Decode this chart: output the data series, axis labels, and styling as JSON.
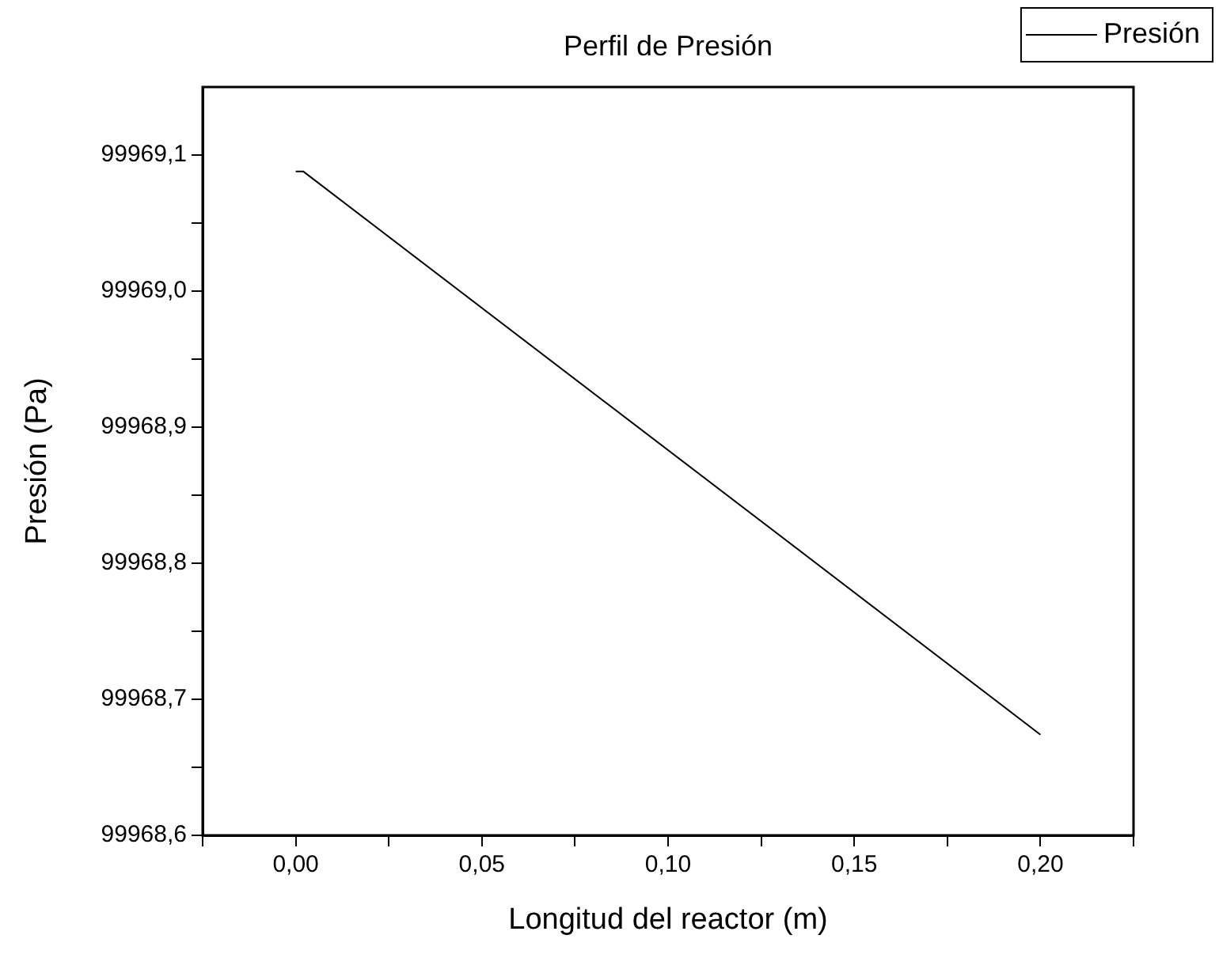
{
  "chart_data": {
    "type": "line",
    "title": "Perfil de Presión",
    "xlabel": "Longitud del reactor (m)",
    "ylabel": "Presión (Pa)",
    "x": [
      0,
      0.002,
      0.2
    ],
    "series": [
      {
        "name": "Presión",
        "color": "#000000",
        "values": [
          99969.088,
          99969.088,
          99968.674
        ]
      }
    ],
    "xlim": [
      -0.025,
      0.225
    ],
    "xticks": [
      {
        "value": -0.025,
        "label": null
      },
      {
        "value": 0,
        "label": "0,00"
      },
      {
        "value": 0.025,
        "label": null
      },
      {
        "value": 0.05,
        "label": "0,05"
      },
      {
        "value": 0.075,
        "label": null
      },
      {
        "value": 0.1,
        "label": "0,10"
      },
      {
        "value": 0.125,
        "label": null
      },
      {
        "value": 0.15,
        "label": "0,15"
      },
      {
        "value": 0.175,
        "label": null
      },
      {
        "value": 0.2,
        "label": "0,20"
      },
      {
        "value": 0.225,
        "label": null
      }
    ],
    "ylim": [
      99968.6,
      99969.15
    ],
    "yticks": [
      {
        "value": 99968.6,
        "label": "99968,6"
      },
      {
        "value": 99968.65,
        "label": null
      },
      {
        "value": 99968.7,
        "label": "99968,7"
      },
      {
        "value": 99968.75,
        "label": null
      },
      {
        "value": 99968.8,
        "label": "99968,8"
      },
      {
        "value": 99968.85,
        "label": null
      },
      {
        "value": 99968.9,
        "label": "99968,9"
      },
      {
        "value": 99968.95,
        "label": null
      },
      {
        "value": 99969.0,
        "label": "99969,0"
      },
      {
        "value": 99969.05,
        "label": null
      },
      {
        "value": 99969.1,
        "label": "99969,1"
      }
    ],
    "grid": false,
    "legend": "top right",
    "marker": "none",
    "line_style": "solid"
  }
}
